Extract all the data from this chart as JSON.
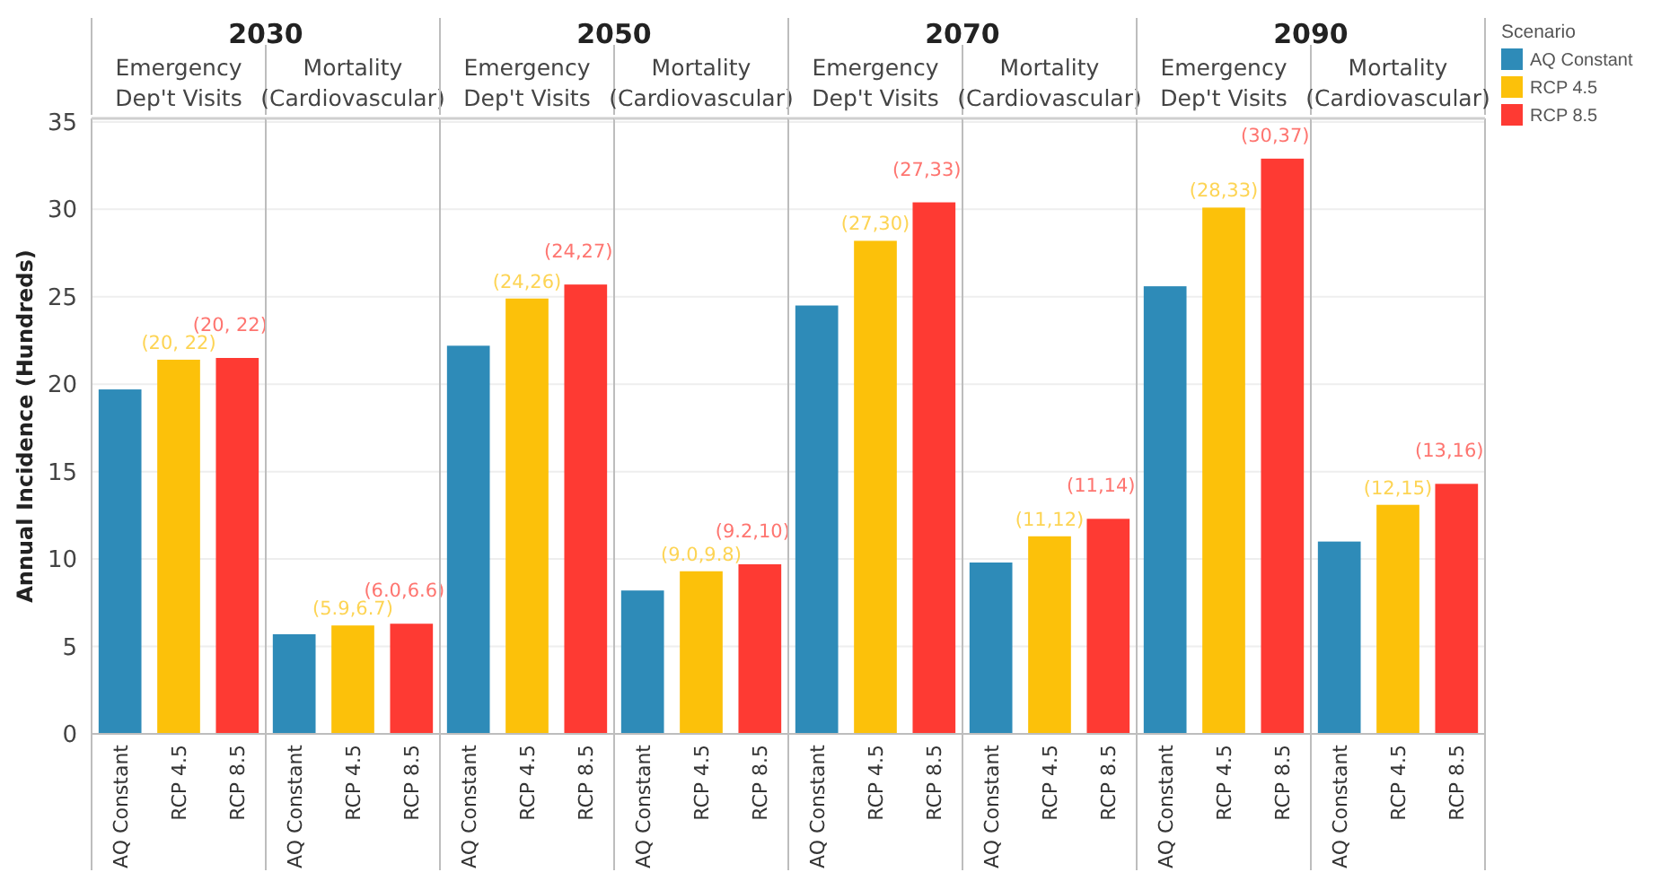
{
  "chart_data": [
    {
      "type": "bar",
      "title": "2030",
      "subtitle": "Emergency Dep't Visits",
      "ylabel": "Annual Incidence (Hundreds)",
      "categories": [
        "AQ Constant",
        "RCP 4.5",
        "RCP 8.5"
      ],
      "series": [
        {
          "color": "#2e8bb8",
          "values": [
            19.7,
            null,
            null
          ]
        },
        {
          "color": "#fcc10a",
          "values": [
            null,
            21.4,
            null
          ]
        },
        {
          "color": "#fe3a33",
          "values": [
            null,
            null,
            21.5
          ]
        }
      ],
      "annotations": [
        {
          "text": "(20, 22)",
          "x": "RCP 4.5",
          "y": 21.4
        },
        {
          "text": "(20, 22)",
          "x": "RCP 8.5",
          "y": 21.5
        }
      ],
      "ylim": [
        0,
        35.2
      ],
      "yticks": [
        0,
        5,
        10,
        15,
        20,
        25,
        30,
        35
      ],
      "grid": "y"
    },
    {
      "type": "bar",
      "subtitle": "Mortality (Cardiovascular)",
      "categories": [
        "AQ Constant",
        "RCP 4.5",
        "RCP 8.5"
      ],
      "series": [
        {
          "color": "#2e8bb8",
          "values": [
            5.7,
            null,
            null
          ]
        },
        {
          "color": "#fcc10a",
          "values": [
            null,
            6.2,
            null
          ]
        },
        {
          "color": "#fe3a33",
          "values": [
            null,
            null,
            6.3
          ]
        }
      ],
      "annotations": [
        {
          "text": "(5.9,6.7)",
          "x": "RCP 4.5",
          "y": 6.2
        },
        {
          "text": "(6.0,6.6)",
          "x": "RCP 8.5",
          "y": 6.3
        }
      ],
      "ylim": [
        0,
        35.2
      ],
      "yticks": [
        0,
        5,
        10,
        15,
        20,
        25,
        30,
        35
      ],
      "grid": "y",
      "tick_labels": "x"
    },
    {
      "type": "bar",
      "title": "2050",
      "subtitle": "Emergency Dep't Visits",
      "categories": [
        "AQ Constant",
        "RCP 4.5",
        "RCP 8.5"
      ],
      "series": [
        {
          "color": "#2e8bb8",
          "values": [
            22.2,
            null,
            null
          ]
        },
        {
          "color": "#fcc10a",
          "values": [
            null,
            24.9,
            null
          ]
        },
        {
          "color": "#fe3a33",
          "values": [
            null,
            null,
            25.7
          ]
        }
      ],
      "annotations": [
        {
          "text": "(24,26)",
          "x": "RCP 4.5",
          "y": 24.9
        },
        {
          "text": "(24,27)",
          "x": "RCP 8.5",
          "y": 25.7
        }
      ],
      "ylim": [
        0,
        35.2
      ],
      "yticks": [
        0,
        5,
        10,
        15,
        20,
        25,
        30,
        35
      ],
      "grid": "y",
      "tick_labels": "x"
    },
    {
      "type": "bar",
      "subtitle": "Mortality (Cardiovascular)",
      "categories": [
        "AQ Constant",
        "RCP 4.5",
        "RCP 8.5"
      ],
      "series": [
        {
          "color": "#2e8bb8",
          "values": [
            8.2,
            null,
            null
          ]
        },
        {
          "color": "#fcc10a",
          "values": [
            null,
            9.3,
            null
          ]
        },
        {
          "color": "#fe3a33",
          "values": [
            null,
            null,
            9.7
          ]
        }
      ],
      "annotations": [
        {
          "text": "(9.0,9.8)",
          "x": "RCP 4.5",
          "y": 9.3
        },
        {
          "text": "(9.2,10)",
          "x": "RCP 8.5",
          "y": 9.7
        }
      ],
      "ylim": [
        0,
        35.2
      ],
      "yticks": [
        0,
        5,
        10,
        15,
        20,
        25,
        30,
        35
      ],
      "grid": "y",
      "tick_labels": "x"
    },
    {
      "type": "bar",
      "title": "2070",
      "subtitle": "Emergency Dep't Visits",
      "categories": [
        "AQ Constant",
        "RCP 4.5",
        "RCP 8.5"
      ],
      "series": [
        {
          "color": "#2e8bb8",
          "values": [
            24.5,
            null,
            null
          ]
        },
        {
          "color": "#fcc10a",
          "values": [
            null,
            28.2,
            null
          ]
        },
        {
          "color": "#fe3a33",
          "values": [
            null,
            null,
            30.4
          ]
        }
      ],
      "annotations": [
        {
          "text": "(27,30)",
          "x": "RCP 4.5",
          "y": 28.2
        },
        {
          "text": "(27,33)",
          "x": "RCP 8.5",
          "y": 30.4
        }
      ],
      "ylim": [
        0,
        35.2
      ],
      "yticks": [
        0,
        5,
        10,
        15,
        20,
        25,
        30,
        35
      ],
      "grid": "y",
      "tick_labels": "x"
    },
    {
      "type": "bar",
      "subtitle": "Mortality (Cardiovascular)",
      "categories": [
        "AQ Constant",
        "RCP 4.5",
        "RCP 8.5"
      ],
      "series": [
        {
          "color": "#2e8bb8",
          "values": [
            9.8,
            null,
            null
          ]
        },
        {
          "color": "#fcc10a",
          "values": [
            null,
            11.3,
            null
          ]
        },
        {
          "color": "#fe3a33",
          "values": [
            null,
            null,
            12.3
          ]
        }
      ],
      "annotations": [
        {
          "text": "(11,12)",
          "x": "RCP 4.5",
          "y": 11.3
        },
        {
          "text": "(11,14)",
          "x": "RCP 8.5",
          "y": 12.3
        }
      ],
      "ylim": [
        0,
        35.2
      ],
      "yticks": [
        0,
        5,
        10,
        15,
        20,
        25,
        30,
        35
      ],
      "grid": "y",
      "tick_labels": "x"
    },
    {
      "type": "bar",
      "title": "2090",
      "subtitle": "Emergency Dep't Visits",
      "categories": [
        "AQ Constant",
        "RCP 4.5",
        "RCP 8.5"
      ],
      "series": [
        {
          "color": "#2e8bb8",
          "values": [
            25.6,
            null,
            null
          ]
        },
        {
          "color": "#fcc10a",
          "values": [
            null,
            30.1,
            null
          ]
        },
        {
          "color": "#fe3a33",
          "values": [
            null,
            null,
            32.9
          ]
        }
      ],
      "annotations": [
        {
          "text": "(28,33)",
          "x": "RCP 4.5",
          "y": 30.1
        },
        {
          "text": "(30,37)",
          "x": "RCP 8.5",
          "y": 32.9
        }
      ],
      "ylim": [
        0,
        35.2
      ],
      "yticks": [
        0,
        5,
        10,
        15,
        20,
        25,
        30,
        35
      ],
      "grid": "y",
      "tick_labels": "x"
    },
    {
      "type": "bar",
      "subtitle": "Mortality (Cardiovascular)",
      "categories": [
        "AQ Constant",
        "RCP 4.5",
        "RCP 8.5"
      ],
      "series": [
        {
          "name": "AQ Constant",
          "color": "#2e8bb8",
          "values": [
            11.0,
            null,
            null
          ]
        },
        {
          "name": "RCP 4.5",
          "color": "#fcc10a",
          "values": [
            null,
            13.1,
            null
          ]
        },
        {
          "name": "RCP 8.5",
          "color": "#fe3a33",
          "values": [
            null,
            null,
            14.3
          ]
        }
      ],
      "annotations": [
        {
          "text": "(12,15)",
          "x": "RCP 4.5",
          "y": 13.1
        },
        {
          "text": "(13,16)",
          "x": "RCP 8.5",
          "y": 14.3
        }
      ],
      "ylim": [
        0,
        35.2
      ],
      "yticks": [
        0,
        5,
        10,
        15,
        20,
        25,
        30,
        35
      ],
      "grid": "y",
      "tick_labels": "x",
      "legend": "right",
      "legend_title": "Scenario"
    }
  ]
}
